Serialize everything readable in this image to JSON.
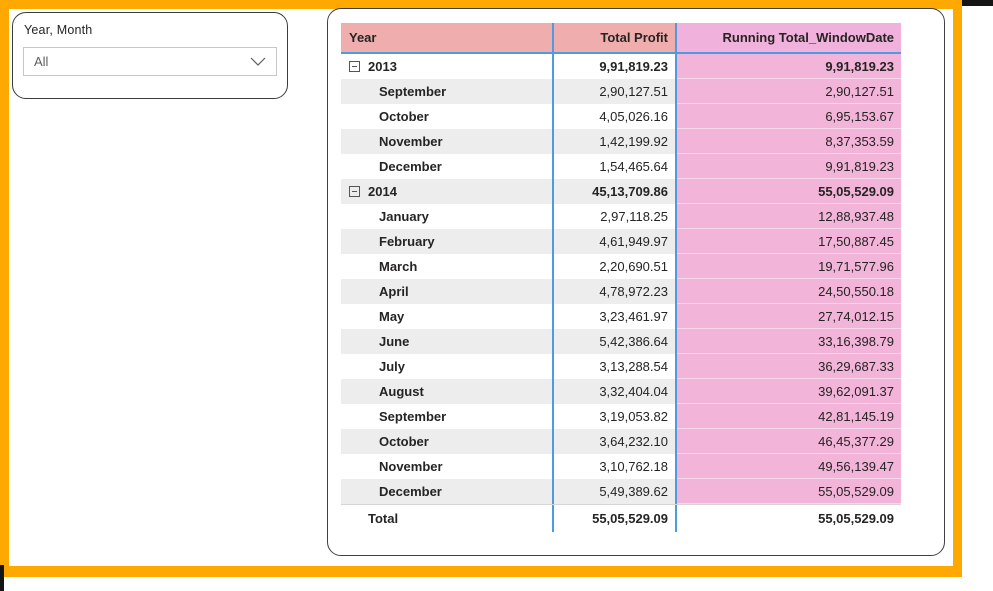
{
  "colors": {
    "frame_orange": "#FFA800",
    "header_salmon": "#F0ADAD",
    "header_pink": "#F0B1DC",
    "cell_pink": "#F2B4D9",
    "row_alt_gray": "#EDEDED",
    "separator_blue": "#4F9BE0"
  },
  "slicer": {
    "title": "Year, Month",
    "value": "All",
    "chevron_icon": "chevron-down"
  },
  "table": {
    "columns": [
      "Year",
      "Total Profit",
      "Running Total_WindowDate"
    ],
    "rows": [
      {
        "label": "2013",
        "level": "year",
        "expanded": true,
        "profit": "9,91,819.23",
        "running": "9,91,819.23"
      },
      {
        "label": "September",
        "level": "month",
        "profit": "2,90,127.51",
        "running": "2,90,127.51"
      },
      {
        "label": "October",
        "level": "month",
        "profit": "4,05,026.16",
        "running": "6,95,153.67"
      },
      {
        "label": "November",
        "level": "month",
        "profit": "1,42,199.92",
        "running": "8,37,353.59"
      },
      {
        "label": "December",
        "level": "month",
        "profit": "1,54,465.64",
        "running": "9,91,819.23"
      },
      {
        "label": "2014",
        "level": "year",
        "expanded": true,
        "profit": "45,13,709.86",
        "running": "55,05,529.09"
      },
      {
        "label": "January",
        "level": "month",
        "profit": "2,97,118.25",
        "running": "12,88,937.48"
      },
      {
        "label": "February",
        "level": "month",
        "profit": "4,61,949.97",
        "running": "17,50,887.45"
      },
      {
        "label": "March",
        "level": "month",
        "profit": "2,20,690.51",
        "running": "19,71,577.96"
      },
      {
        "label": "April",
        "level": "month",
        "profit": "4,78,972.23",
        "running": "24,50,550.18"
      },
      {
        "label": "May",
        "level": "month",
        "profit": "3,23,461.97",
        "running": "27,74,012.15"
      },
      {
        "label": "June",
        "level": "month",
        "profit": "5,42,386.64",
        "running": "33,16,398.79"
      },
      {
        "label": "July",
        "level": "month",
        "profit": "3,13,288.54",
        "running": "36,29,687.33"
      },
      {
        "label": "August",
        "level": "month",
        "profit": "3,32,404.04",
        "running": "39,62,091.37"
      },
      {
        "label": "September",
        "level": "month",
        "profit": "3,19,053.82",
        "running": "42,81,145.19"
      },
      {
        "label": "October",
        "level": "month",
        "profit": "3,64,232.10",
        "running": "46,45,377.29"
      },
      {
        "label": "November",
        "level": "month",
        "profit": "3,10,762.18",
        "running": "49,56,139.47"
      },
      {
        "label": "December",
        "level": "month",
        "profit": "5,49,389.62",
        "running": "55,05,529.09"
      }
    ],
    "total": {
      "label": "Total",
      "profit": "55,05,529.09",
      "running": "55,05,529.09"
    }
  }
}
